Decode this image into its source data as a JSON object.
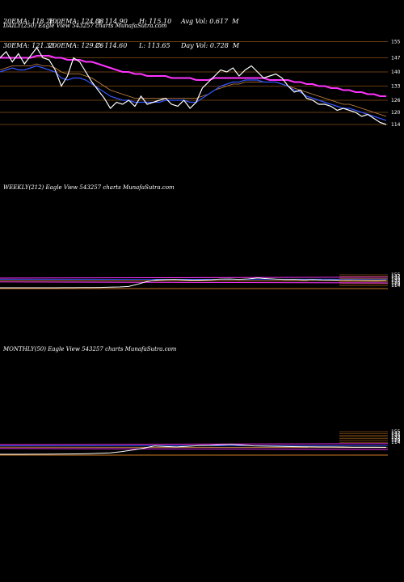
{
  "stats": {
    "row1": [
      "20EMA: 118.26",
      "100EMA: 124.38",
      "O: 114.90",
      "H: 115.10",
      "Avg Vol: 0.617  M"
    ],
    "row2": [
      "30EMA: 121.33",
      "200EMA: 129.26",
      "C: 114.60",
      "L: 113.65",
      "Day Vol: 0.728  M"
    ]
  },
  "colors": {
    "background": "#000000",
    "price": "#ffffff",
    "ema_short": "#3355ff",
    "ema_long": "#ff33ff",
    "ema_mid": "#cc8844",
    "grid": "#cc7722"
  },
  "chart_data": [
    {
      "type": "line",
      "title": "DAILY(250) Eagle  View  543257 charts MunafaSutra.com",
      "ylim": [
        110,
        158
      ],
      "y_ticks": [
        155,
        147,
        140,
        133,
        126,
        120,
        114
      ],
      "series": [
        {
          "values": [
            147,
            150,
            145,
            149,
            144,
            148,
            152,
            147,
            146,
            141,
            133,
            138,
            147,
            145,
            140,
            135,
            131,
            127,
            122,
            125,
            124,
            126,
            123,
            128,
            124,
            125,
            126,
            127,
            124,
            123,
            126,
            122,
            125,
            132,
            135,
            138,
            141,
            140,
            142,
            138,
            141,
            143,
            140,
            137,
            138,
            139,
            137,
            133,
            130,
            131,
            127,
            126,
            124,
            124,
            123,
            121,
            122,
            121,
            120,
            118,
            119,
            117,
            115,
            114
          ]
        },
        {
          "values": [
            140,
            141,
            142,
            141,
            141,
            142,
            143,
            142,
            141,
            140,
            137,
            136,
            137,
            137,
            136,
            134,
            132,
            130,
            128,
            127,
            126,
            126,
            125,
            125,
            125,
            125,
            125,
            126,
            126,
            126,
            126,
            125,
            125,
            127,
            129,
            131,
            133,
            134,
            135,
            135,
            136,
            136,
            136,
            135,
            135,
            135,
            134,
            133,
            131,
            130,
            128,
            127,
            126,
            125,
            124,
            123,
            122,
            122,
            121,
            120,
            119,
            118,
            117,
            116
          ]
        },
        {
          "values": [
            141,
            142,
            143,
            143,
            143,
            143,
            144,
            143,
            143,
            142,
            140,
            139,
            139,
            139,
            138,
            137,
            135,
            133,
            131,
            130,
            129,
            128,
            127,
            127,
            127,
            127,
            127,
            127,
            127,
            127,
            127,
            127,
            127,
            128,
            129,
            131,
            132,
            133,
            134,
            134,
            135,
            135,
            135,
            135,
            135,
            135,
            134,
            133,
            132,
            131,
            130,
            129,
            128,
            127,
            126,
            125,
            124,
            124,
            123,
            122,
            121,
            120,
            119,
            118
          ]
        },
        {
          "values": [
            147,
            147,
            147,
            147,
            147,
            147,
            148,
            148,
            148,
            147,
            147,
            146,
            146,
            146,
            145,
            145,
            144,
            143,
            142,
            141,
            140,
            140,
            139,
            139,
            138,
            138,
            138,
            138,
            137,
            137,
            137,
            137,
            136,
            136,
            136,
            137,
            137,
            137,
            137,
            137,
            137,
            137,
            137,
            137,
            136,
            136,
            136,
            136,
            135,
            135,
            134,
            134,
            133,
            133,
            132,
            132,
            131,
            131,
            130,
            130,
            129,
            129,
            128,
            128
          ]
        }
      ]
    },
    {
      "type": "line",
      "title": "WEEKLY(212) Eagle  View  543257 charts MunafaSutra.com",
      "y_ticks": [
        155,
        147,
        140,
        133,
        126,
        120,
        114
      ],
      "series": [
        {
          "values": [
            0,
            0,
            0,
            0,
            0,
            0,
            0,
            1,
            1,
            2,
            2,
            3,
            5,
            8,
            12,
            35,
            60,
            74,
            78,
            80,
            76,
            72,
            74,
            77,
            82,
            84,
            80,
            85,
            93,
            88,
            82,
            79,
            80,
            76,
            78,
            75,
            74,
            72,
            73,
            71,
            70,
            69,
            72
          ]
        }
      ]
    },
    {
      "type": "line",
      "title": "MONTHLY(50) Eagle  View  543257 charts MunafaSutra.com",
      "y_ticks": [
        155,
        147,
        140,
        133,
        126,
        120,
        114
      ],
      "series": [
        {
          "values": [
            0,
            0,
            0,
            1,
            1,
            2,
            3,
            4,
            6,
            9,
            14,
            25,
            40,
            58,
            80,
            74,
            70,
            76,
            82,
            85,
            90,
            94,
            86,
            80,
            78,
            76,
            74,
            72,
            71,
            70,
            70,
            69,
            68,
            68,
            67,
            66
          ]
        }
      ]
    }
  ]
}
